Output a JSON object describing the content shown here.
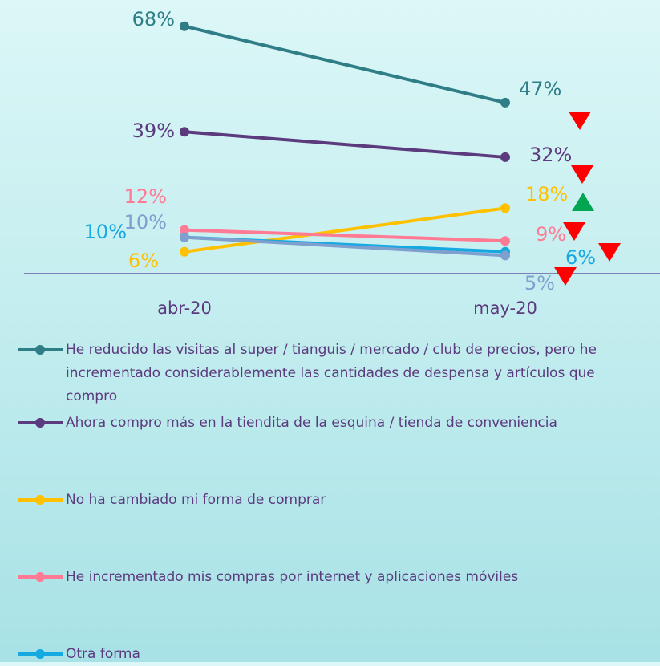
{
  "chart_data": {
    "type": "line",
    "categories": [
      "abr-20",
      "may-20"
    ],
    "ylim": [
      0,
      75
    ],
    "series": [
      {
        "name": "He reducido las visitas al super / tianguis / mercado / club de precios, pero he incrementado considerablemente las cantidades de despensa y artículos que compro",
        "color": "#2e7d87",
        "values": [
          68,
          47
        ],
        "value_labels": [
          "68%",
          "47%"
        ]
      },
      {
        "name": "Ahora compro más en la tiendita de la esquina / tienda de conveniencia",
        "color": "#5b3a7e",
        "values": [
          39,
          32
        ],
        "value_labels": [
          "39%",
          "32%"
        ]
      },
      {
        "name": "No ha cambiado mi forma de comprar",
        "color": "#ffc000",
        "values": [
          6,
          18
        ],
        "value_labels": [
          "6%",
          "18%"
        ]
      },
      {
        "name": "He incrementado mis compras por internet y aplicaciones móviles",
        "color": "#ff7b94",
        "values": [
          12,
          9
        ],
        "value_labels": [
          "12%",
          "9%"
        ]
      },
      {
        "name": "Otra forma",
        "color": "#16a8e0",
        "values": [
          10,
          6
        ],
        "value_labels": [
          "10%",
          "6%"
        ]
      },
      {
        "color": "#7f9fcf",
        "values": [
          10,
          5
        ],
        "value_labels": [
          "10%",
          "5%"
        ]
      }
    ]
  }
}
